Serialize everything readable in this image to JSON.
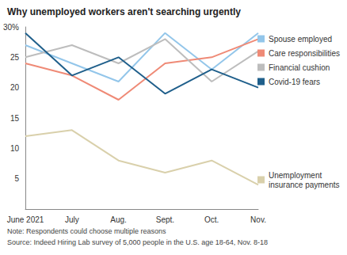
{
  "chart_data": {
    "type": "line",
    "title": "Why unemployed workers aren't searching urgently",
    "note": "Note: Respondents could choose multiple reasons",
    "source": "Source: Indeed Hiring Lab survey of 5,000 people in the U.S. age 18-64, Nov. 8-18",
    "categories": [
      "June 2021",
      "July",
      "Aug.",
      "Sept.",
      "Oct.",
      "Nov."
    ],
    "series": [
      {
        "name": "Spouse employed",
        "color": "#93c6ea",
        "values": [
          27,
          24,
          21,
          29,
          23,
          29
        ]
      },
      {
        "name": "Care responsibilities",
        "color": "#ef8a76",
        "values": [
          24,
          22,
          18,
          24,
          25,
          28
        ]
      },
      {
        "name": "Financial cushion",
        "color": "#bdbdbd",
        "values": [
          25,
          27,
          24,
          28,
          21,
          26
        ]
      },
      {
        "name": "Covid-19 fears",
        "color": "#1f5f8b",
        "values": [
          29,
          22,
          25,
          19,
          23,
          20
        ]
      },
      {
        "name": "Unemployment insurance payments",
        "color": "#d9d0ab",
        "values": [
          12,
          13,
          8,
          6,
          8,
          4
        ]
      }
    ],
    "ylim": [
      0,
      30
    ],
    "yticks": [
      5,
      10,
      15,
      20,
      25,
      {
        "value": 30,
        "label": "30%"
      }
    ],
    "grid": false,
    "legend": "right"
  }
}
